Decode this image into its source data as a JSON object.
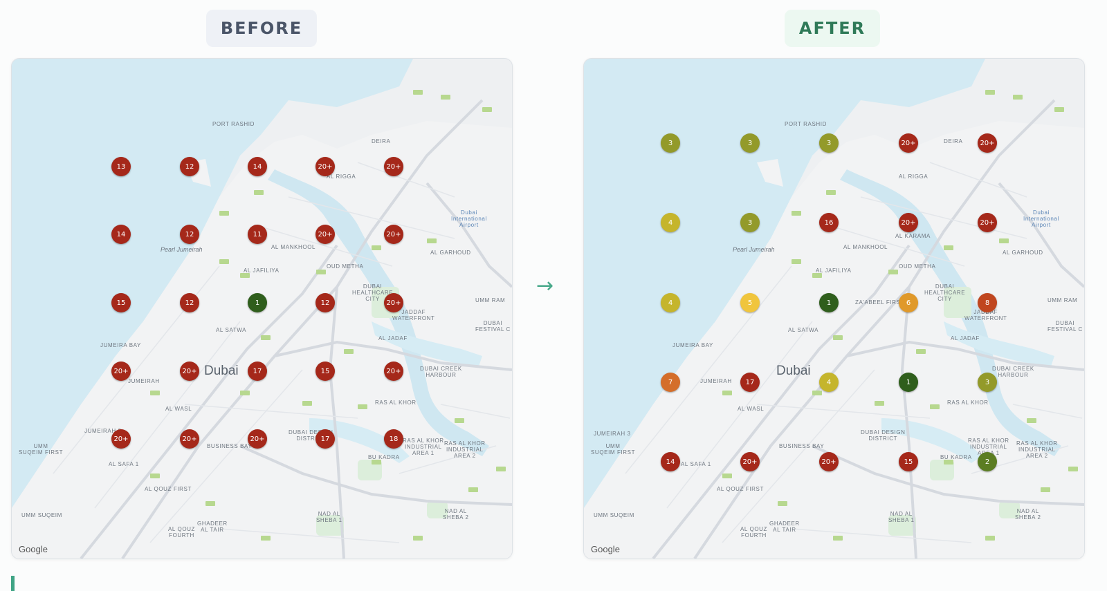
{
  "before": {
    "label": "BEFORE",
    "attribution": "Google",
    "markers": [
      {
        "value": "13",
        "color": "#a5281a"
      },
      {
        "value": "12",
        "color": "#a5281a"
      },
      {
        "value": "14",
        "color": "#a5281a"
      },
      {
        "value": "20+",
        "color": "#a5281a"
      },
      {
        "value": "20+",
        "color": "#a5281a"
      },
      {
        "value": "14",
        "color": "#a5281a"
      },
      {
        "value": "12",
        "color": "#a5281a"
      },
      {
        "value": "11",
        "color": "#a5281a"
      },
      {
        "value": "20+",
        "color": "#a5281a"
      },
      {
        "value": "20+",
        "color": "#a5281a"
      },
      {
        "value": "15",
        "color": "#a5281a"
      },
      {
        "value": "12",
        "color": "#a5281a"
      },
      {
        "value": "1",
        "color": "#2f5e1c"
      },
      {
        "value": "12",
        "color": "#a5281a"
      },
      {
        "value": "20+",
        "color": "#a5281a"
      },
      {
        "value": "20+",
        "color": "#a5281a"
      },
      {
        "value": "20+",
        "color": "#a5281a"
      },
      {
        "value": "17",
        "color": "#a5281a"
      },
      {
        "value": "15",
        "color": "#a5281a"
      },
      {
        "value": "20+",
        "color": "#a5281a"
      },
      {
        "value": "20+",
        "color": "#a5281a"
      },
      {
        "value": "20+",
        "color": "#a5281a"
      },
      {
        "value": "20+",
        "color": "#a5281a"
      },
      {
        "value": "17",
        "color": "#a5281a"
      },
      {
        "value": "18",
        "color": "#a5281a"
      }
    ]
  },
  "after": {
    "label": "AFTER",
    "attribution": "Google",
    "markers": [
      {
        "value": "3",
        "color": "#939a2a"
      },
      {
        "value": "3",
        "color": "#939a2a"
      },
      {
        "value": "3",
        "color": "#939a2a"
      },
      {
        "value": "20+",
        "color": "#a5281a"
      },
      {
        "value": "20+",
        "color": "#a5281a"
      },
      {
        "value": "4",
        "color": "#c5b52c"
      },
      {
        "value": "3",
        "color": "#939a2a"
      },
      {
        "value": "16",
        "color": "#a5281a"
      },
      {
        "value": "20+",
        "color": "#a5281a"
      },
      {
        "value": "20+",
        "color": "#a5281a"
      },
      {
        "value": "4",
        "color": "#c5b52c"
      },
      {
        "value": "5",
        "color": "#f0c53d"
      },
      {
        "value": "1",
        "color": "#2f5e1c"
      },
      {
        "value": "6",
        "color": "#e0992a"
      },
      {
        "value": "8",
        "color": "#c0461f"
      },
      {
        "value": "7",
        "color": "#d46e2a"
      },
      {
        "value": "17",
        "color": "#a5281a"
      },
      {
        "value": "4",
        "color": "#c5b52c"
      },
      {
        "value": "1",
        "color": "#2f5e1c"
      },
      {
        "value": "3",
        "color": "#939a2a"
      },
      {
        "value": "14",
        "color": "#a5281a"
      },
      {
        "value": "20+",
        "color": "#a5281a"
      },
      {
        "value": "20+",
        "color": "#a5281a"
      },
      {
        "value": "15",
        "color": "#a5281a"
      },
      {
        "value": "2",
        "color": "#5b7d22"
      }
    ]
  },
  "arrow_symbol": "→",
  "map_labels": {
    "port_rashid": "PORT RASHID",
    "deira": "DEIRA",
    "al_rigga": "AL RIGGA",
    "airport": "Dubai\nInternational\nAirport",
    "pearl": "Pearl Jumeirah",
    "al_mankhool": "AL MANKHOOL",
    "al_jafiliya": "AL JAFILIYA",
    "oud_metha": "OUD METHA",
    "healthcare": "DUBAI\nHEALTHCARE\nCITY",
    "al_garhoud": "AL GARHOUD",
    "jaddaf": "JADDAF\nWATERFRONT",
    "za_abeel": "ZA'ABEEL FIRST",
    "umm_ramool": "UMM RAM",
    "festival": "DUBAI\nFESTIVAL C",
    "al_satwa": "AL SATWA",
    "dubai": "Dubai",
    "al_jadaf": "AL JADAF",
    "creek_harbour": "DUBAI CREEK\nHARBOUR",
    "jumeirah": "JUMEIRAH",
    "al_wasl": "AL WASL",
    "ras_al_khor": "RAS AL KHOR",
    "design": "DUBAI DESIGN\nDISTRICT",
    "business_bay": "BUSINESS BAY",
    "khor_ind": "RAS AL KHOR\nINDUSTRIAL\nAREA 1",
    "khor_ind2": "RAS AL KHOR\nINDUSTRIAL\nAREA 2",
    "umm_suqeim": "UMM\nSUQEIM FIRST",
    "al_safa": "AL SAFA 1",
    "al_quoz": "AL QOUZ FIRST",
    "umm_suqeim2": "UMM SUQEIM",
    "ghadeer": "GHADEER\nAL TAIR",
    "nad_sheba": "NAD AL\nSHEBA 1",
    "nad_sheba2": "NAD AL\nSHEBA 2",
    "al_quoz4": "AL QOUZ\nFOURTH",
    "bu_kadra": "BU KADRA",
    "jumeira_bay": "JUMEIRA BAY",
    "jumeirah3": "JUMEIRAH 3",
    "al_karama": "AL KARAMA"
  }
}
